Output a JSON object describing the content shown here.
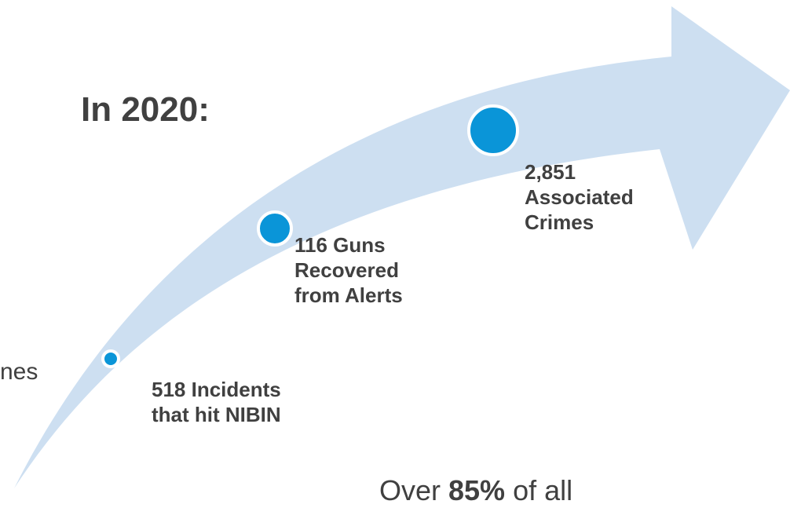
{
  "title": "In 2020:",
  "colors": {
    "arrow_fill": "#cddff1",
    "dot_fill": "#0a95d8",
    "dot_stroke": "#ffffff",
    "text": "#404040"
  },
  "milestones": [
    {
      "label": "518 Incidents\nthat hit NIBIN"
    },
    {
      "label": "116 Guns\nRecovered\nfrom Alerts"
    },
    {
      "label": "2,851\nAssociated\nCrimes"
    }
  ],
  "left_fragment": "nes",
  "bottom_fragment": {
    "prefix": "Over ",
    "bold": "85%",
    "suffix": " of all"
  }
}
